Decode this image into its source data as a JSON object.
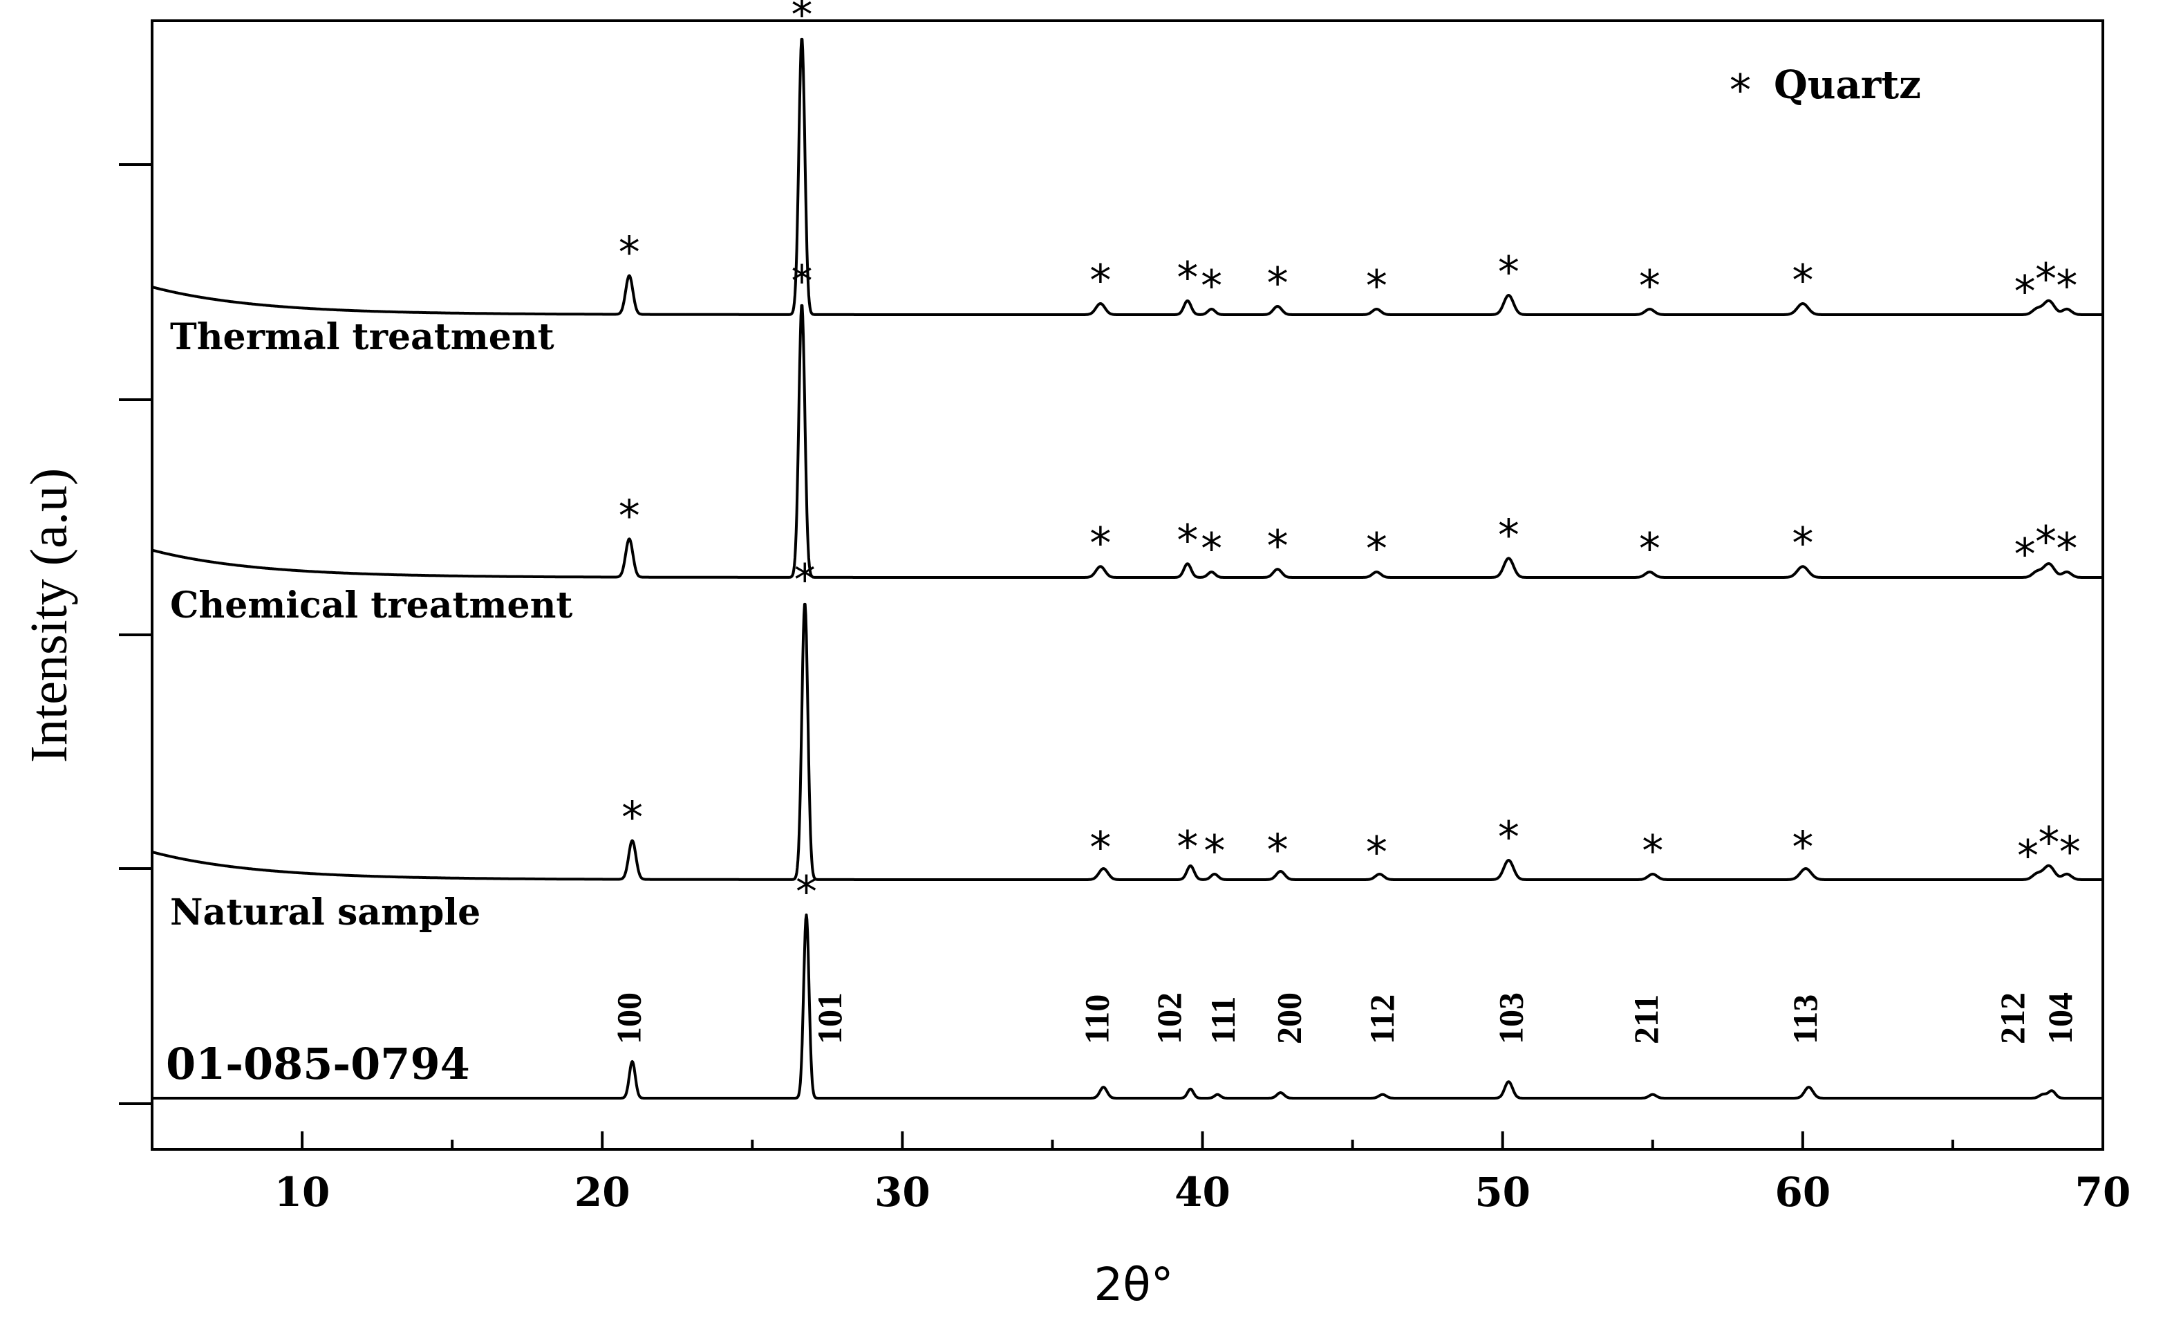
{
  "chart_data": {
    "type": "line",
    "title": "",
    "xlabel": "2θ°",
    "ylabel": "Intensity (a.u)",
    "xlim": [
      5,
      70
    ],
    "x_ticks": [
      10,
      20,
      30,
      40,
      50,
      60,
      70
    ],
    "legend": {
      "marker": "*",
      "label": "Quartz",
      "position": "top-right"
    },
    "series": [
      {
        "name": "Thermal treatment",
        "baseline_start": 0.1,
        "peaks": [
          {
            "x": 20.9,
            "h": 0.14,
            "w": 0.12
          },
          {
            "x": 26.65,
            "h": 1.0,
            "w": 0.1
          },
          {
            "x": 36.6,
            "h": 0.04,
            "w": 0.15
          },
          {
            "x": 39.5,
            "h": 0.05,
            "w": 0.12
          },
          {
            "x": 40.3,
            "h": 0.02,
            "w": 0.12
          },
          {
            "x": 42.5,
            "h": 0.03,
            "w": 0.14
          },
          {
            "x": 45.8,
            "h": 0.02,
            "w": 0.14
          },
          {
            "x": 50.2,
            "h": 0.07,
            "w": 0.16
          },
          {
            "x": 54.9,
            "h": 0.02,
            "w": 0.15
          },
          {
            "x": 60.0,
            "h": 0.04,
            "w": 0.18
          },
          {
            "x": 67.8,
            "h": 0.02,
            "w": 0.15
          },
          {
            "x": 68.2,
            "h": 0.05,
            "w": 0.18
          },
          {
            "x": 68.8,
            "h": 0.02,
            "w": 0.15
          }
        ],
        "star_positions": [
          20.9,
          26.65,
          36.6,
          39.5,
          40.3,
          42.5,
          45.8,
          50.2,
          54.9,
          60.0,
          67.4,
          68.1,
          68.8
        ]
      },
      {
        "name": "Chemical treatment",
        "baseline_start": 0.1,
        "peaks": [
          {
            "x": 20.9,
            "h": 0.14,
            "w": 0.12
          },
          {
            "x": 26.65,
            "h": 1.0,
            "w": 0.1
          },
          {
            "x": 36.6,
            "h": 0.04,
            "w": 0.15
          },
          {
            "x": 39.5,
            "h": 0.05,
            "w": 0.12
          },
          {
            "x": 40.3,
            "h": 0.02,
            "w": 0.12
          },
          {
            "x": 42.5,
            "h": 0.03,
            "w": 0.14
          },
          {
            "x": 45.8,
            "h": 0.02,
            "w": 0.14
          },
          {
            "x": 50.2,
            "h": 0.07,
            "w": 0.16
          },
          {
            "x": 54.9,
            "h": 0.02,
            "w": 0.15
          },
          {
            "x": 60.0,
            "h": 0.04,
            "w": 0.18
          },
          {
            "x": 67.8,
            "h": 0.02,
            "w": 0.15
          },
          {
            "x": 68.2,
            "h": 0.05,
            "w": 0.18
          },
          {
            "x": 68.8,
            "h": 0.02,
            "w": 0.15
          }
        ],
        "star_positions": [
          20.9,
          26.65,
          36.6,
          39.5,
          40.3,
          42.5,
          45.8,
          50.2,
          54.9,
          60.0,
          67.4,
          68.1,
          68.8
        ]
      },
      {
        "name": "Natural sample",
        "baseline_start": 0.1,
        "peaks": [
          {
            "x": 21.0,
            "h": 0.14,
            "w": 0.12
          },
          {
            "x": 26.75,
            "h": 1.0,
            "w": 0.1
          },
          {
            "x": 36.7,
            "h": 0.04,
            "w": 0.15
          },
          {
            "x": 39.6,
            "h": 0.05,
            "w": 0.12
          },
          {
            "x": 40.4,
            "h": 0.02,
            "w": 0.12
          },
          {
            "x": 42.6,
            "h": 0.03,
            "w": 0.14
          },
          {
            "x": 45.9,
            "h": 0.02,
            "w": 0.14
          },
          {
            "x": 50.2,
            "h": 0.07,
            "w": 0.16
          },
          {
            "x": 55.0,
            "h": 0.02,
            "w": 0.15
          },
          {
            "x": 60.1,
            "h": 0.04,
            "w": 0.18
          },
          {
            "x": 67.8,
            "h": 0.02,
            "w": 0.15
          },
          {
            "x": 68.2,
            "h": 0.05,
            "w": 0.18
          },
          {
            "x": 68.8,
            "h": 0.02,
            "w": 0.15
          }
        ],
        "star_positions": [
          21.0,
          26.75,
          36.6,
          39.5,
          40.4,
          42.5,
          45.8,
          50.2,
          55.0,
          60.0,
          67.5,
          68.2,
          68.9
        ]
      },
      {
        "name": "01-085-0794",
        "baseline_start": 0.0,
        "peaks": [
          {
            "x": 21.0,
            "h": 0.2,
            "w": 0.1
          },
          {
            "x": 26.8,
            "h": 1.0,
            "w": 0.09
          },
          {
            "x": 36.7,
            "h": 0.06,
            "w": 0.12
          },
          {
            "x": 39.6,
            "h": 0.05,
            "w": 0.1
          },
          {
            "x": 40.5,
            "h": 0.02,
            "w": 0.1
          },
          {
            "x": 42.6,
            "h": 0.03,
            "w": 0.12
          },
          {
            "x": 46.0,
            "h": 0.02,
            "w": 0.12
          },
          {
            "x": 50.2,
            "h": 0.09,
            "w": 0.13
          },
          {
            "x": 55.0,
            "h": 0.02,
            "w": 0.12
          },
          {
            "x": 60.2,
            "h": 0.06,
            "w": 0.14
          },
          {
            "x": 68.0,
            "h": 0.02,
            "w": 0.12
          },
          {
            "x": 68.3,
            "h": 0.04,
            "w": 0.12
          }
        ],
        "star_positions": [
          26.8
        ]
      }
    ],
    "reference_hkl": [
      {
        "label": "100",
        "x": 20.9
      },
      {
        "label": "101",
        "x": 27.6
      },
      {
        "label": "110",
        "x": 36.5
      },
      {
        "label": "102",
        "x": 38.9
      },
      {
        "label": "111",
        "x": 40.7
      },
      {
        "label": "200",
        "x": 42.9
      },
      {
        "label": "112",
        "x": 46.0
      },
      {
        "label": "103",
        "x": 50.3
      },
      {
        "label": "211",
        "x": 54.8
      },
      {
        "label": "113",
        "x": 60.1
      },
      {
        "label": "212",
        "x": 67.0
      },
      {
        "label": "104",
        "x": 68.6
      }
    ]
  }
}
